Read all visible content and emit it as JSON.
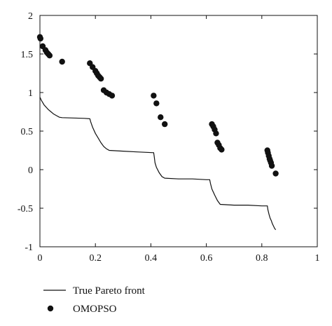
{
  "chart_data": {
    "type": "scatter",
    "title": "",
    "xlabel": "",
    "ylabel": "",
    "xlim": [
      0,
      1
    ],
    "ylim": [
      -1,
      2
    ],
    "x_ticks": [
      "0",
      "0.2",
      "0.4",
      "0.6",
      "0.8",
      "1"
    ],
    "y_ticks": [
      "-1",
      "-0.5",
      "0",
      "0.5",
      "1",
      "1.5",
      "2"
    ],
    "x_tick_values": [
      0,
      0.2,
      0.4,
      0.6,
      0.8,
      1
    ],
    "y_tick_values": [
      -1,
      -0.5,
      0,
      0.5,
      1,
      1.5,
      2
    ],
    "grid": false,
    "legend_position": "bottom-left, below the plot",
    "series": [
      {
        "name": "True Pareto front",
        "kind": "line",
        "color": "#111111",
        "x": [
          0.0,
          0.005,
          0.01,
          0.015,
          0.02,
          0.025,
          0.03,
          0.04,
          0.05,
          0.06,
          0.07,
          0.08,
          0.12,
          0.16,
          0.18,
          0.183,
          0.19,
          0.2,
          0.21,
          0.22,
          0.23,
          0.24,
          0.25,
          0.3,
          0.35,
          0.41,
          0.412,
          0.415,
          0.42,
          0.43,
          0.44,
          0.45,
          0.5,
          0.55,
          0.6,
          0.612,
          0.615,
          0.62,
          0.63,
          0.64,
          0.65,
          0.7,
          0.75,
          0.8,
          0.82,
          0.822,
          0.826,
          0.83,
          0.834,
          0.838,
          0.842,
          0.846,
          0.85
        ],
        "y": [
          0.94,
          0.9,
          0.87,
          0.84,
          0.82,
          0.8,
          0.78,
          0.75,
          0.72,
          0.7,
          0.68,
          0.675,
          0.67,
          0.665,
          0.66,
          0.62,
          0.55,
          0.47,
          0.41,
          0.35,
          0.3,
          0.27,
          0.25,
          0.24,
          0.23,
          0.22,
          0.17,
          0.09,
          0.03,
          -0.04,
          -0.09,
          -0.11,
          -0.12,
          -0.12,
          -0.13,
          -0.13,
          -0.18,
          -0.25,
          -0.33,
          -0.4,
          -0.45,
          -0.46,
          -0.46,
          -0.47,
          -0.47,
          -0.52,
          -0.58,
          -0.63,
          -0.66,
          -0.7,
          -0.73,
          -0.76,
          -0.78
        ]
      },
      {
        "name": "OMOPSO",
        "kind": "scatter",
        "color": "#111111",
        "x": [
          0.0,
          0.002,
          0.01,
          0.02,
          0.025,
          0.03,
          0.035,
          0.08,
          0.18,
          0.19,
          0.2,
          0.205,
          0.21,
          0.215,
          0.22,
          0.23,
          0.24,
          0.25,
          0.26,
          0.41,
          0.42,
          0.435,
          0.45,
          0.62,
          0.625,
          0.63,
          0.635,
          0.64,
          0.645,
          0.65,
          0.655,
          0.82,
          0.822,
          0.825,
          0.828,
          0.83,
          0.833,
          0.836,
          0.85
        ],
        "y": [
          1.72,
          1.7,
          1.6,
          1.55,
          1.52,
          1.5,
          1.48,
          1.4,
          1.38,
          1.33,
          1.28,
          1.25,
          1.22,
          1.2,
          1.18,
          1.03,
          1.0,
          0.98,
          0.96,
          0.96,
          0.86,
          0.68,
          0.59,
          0.59,
          0.56,
          0.52,
          0.47,
          0.35,
          0.32,
          0.28,
          0.26,
          0.25,
          0.22,
          0.18,
          0.14,
          0.12,
          0.09,
          0.05,
          -0.05
        ]
      }
    ]
  }
}
